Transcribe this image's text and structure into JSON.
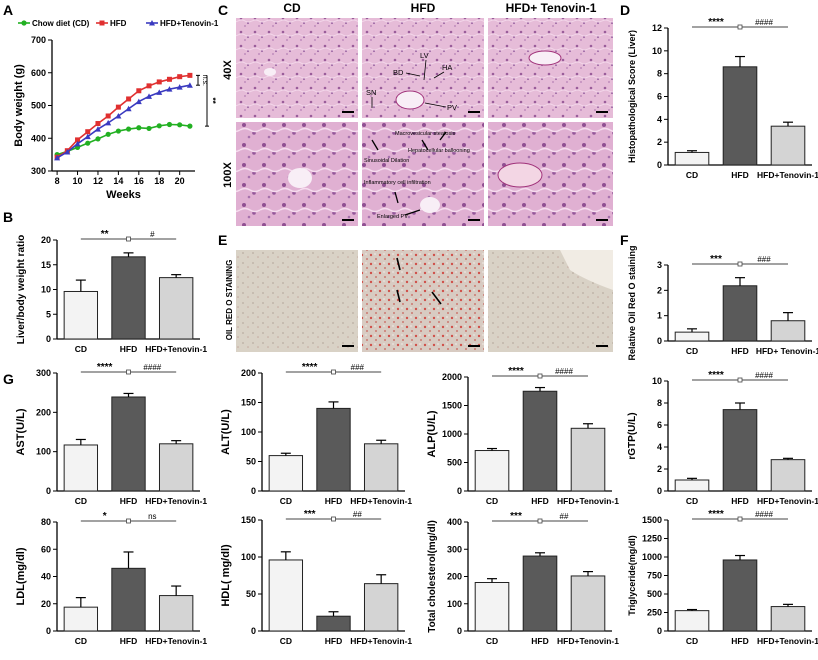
{
  "figure": {
    "panel_labels": [
      "A",
      "B",
      "C",
      "D",
      "E",
      "F",
      "G"
    ],
    "histology": {
      "columns": [
        "CD",
        "HFD",
        "HFD+ Tenovin-1"
      ],
      "rows": [
        "40X",
        "100X"
      ],
      "stain_label": "OIL RED O STAINING",
      "annotations_40x": [
        "LV",
        "BD",
        "HA",
        "SN",
        "PV"
      ],
      "annotations_100x": [
        "Macrovesicular steatosis",
        "Hepatocellular ballooning",
        "Sinusoidal Dilation",
        "Inflammatory cell infiltration",
        "Enlarged PV"
      ]
    },
    "colors": {
      "cd": "#f3f3f3",
      "hfd": "#5a5a5a",
      "ten": "#d4d4d4",
      "green": "#22b022",
      "red": "#e03030",
      "blue": "#3a3ac0"
    }
  },
  "chart_data": [
    {
      "id": "A",
      "type": "line",
      "xlabel": "Weeks",
      "ylabel": "Body weight (g)",
      "xticks": [
        8,
        10,
        12,
        14,
        16,
        18,
        20
      ],
      "ylim": [
        300,
        700
      ],
      "yticks": [
        300,
        400,
        500,
        600,
        700
      ],
      "legend": [
        "Chow diet (CD)",
        "HFD",
        "HFD+Tenovin-1"
      ],
      "x": [
        8,
        9,
        10,
        11,
        12,
        13,
        14,
        15,
        16,
        17,
        18,
        19,
        20,
        21
      ],
      "series": [
        {
          "name": "Chow diet (CD)",
          "values": [
            350,
            360,
            372,
            385,
            398,
            412,
            422,
            428,
            432,
            430,
            438,
            442,
            441,
            437
          ]
        },
        {
          "name": "HFD",
          "values": [
            342,
            362,
            395,
            420,
            445,
            468,
            495,
            520,
            545,
            560,
            572,
            580,
            588,
            592
          ]
        },
        {
          "name": "HFD+Tenovin-1",
          "values": [
            340,
            358,
            383,
            405,
            428,
            447,
            468,
            490,
            512,
            528,
            540,
            550,
            556,
            562
          ]
        }
      ],
      "sig": [
        "n.s.",
        "**"
      ]
    },
    {
      "id": "B",
      "type": "bar",
      "categories": [
        "CD",
        "HFD",
        "HFD+Tenovin-1"
      ],
      "values": [
        9.6,
        16.6,
        12.4
      ],
      "errors": [
        2.3,
        0.8,
        0.6
      ],
      "ylabel": "Liver/body weight ratio",
      "ylim": [
        0,
        20
      ],
      "yticks": [
        0,
        5,
        10,
        15,
        20
      ],
      "sig": [
        "**",
        "#"
      ]
    },
    {
      "id": "D",
      "type": "bar",
      "categories": [
        "CD",
        "HFD",
        "HFD+Tenovin-1"
      ],
      "values": [
        1.1,
        8.6,
        3.4
      ],
      "errors": [
        0.15,
        0.9,
        0.35
      ],
      "ylabel": "Histopathological Score (Liver)",
      "ylim": [
        0,
        12
      ],
      "yticks": [
        0,
        2,
        4,
        6,
        8,
        10,
        12
      ],
      "sig": [
        "****",
        "####"
      ]
    },
    {
      "id": "F",
      "type": "bar",
      "categories": [
        "CD",
        "HFD",
        "HFD+ Tenovin-1"
      ],
      "values": [
        0.35,
        2.18,
        0.8
      ],
      "errors": [
        0.13,
        0.32,
        0.32
      ],
      "ylabel": "Relative Oil Red O staining",
      "ylim": [
        0,
        3
      ],
      "yticks": [
        0,
        1,
        2,
        3
      ],
      "sig": [
        "***",
        "###"
      ]
    },
    {
      "id": "AST",
      "type": "bar",
      "categories": [
        "CD",
        "HFD",
        "HFD+Tenovin-1"
      ],
      "values": [
        117,
        239,
        120
      ],
      "errors": [
        14,
        9,
        8
      ],
      "ylabel": "AST(U/L)",
      "ylim": [
        0,
        300
      ],
      "yticks": [
        0,
        100,
        200,
        300
      ],
      "sig": [
        "****",
        "####"
      ]
    },
    {
      "id": "ALT",
      "type": "bar",
      "categories": [
        "CD",
        "HFD",
        "HFD+Tenovin-1"
      ],
      "values": [
        60,
        140,
        80
      ],
      "errors": [
        4,
        11,
        6
      ],
      "ylabel": "ALT(U/L)",
      "ylim": [
        0,
        200
      ],
      "yticks": [
        0,
        50,
        100,
        150,
        200
      ],
      "sig": [
        "****",
        "###"
      ]
    },
    {
      "id": "ALP",
      "type": "bar",
      "categories": [
        "CD",
        "HFD",
        "HFD+Tenovin-1"
      ],
      "values": [
        710,
        1750,
        1100
      ],
      "errors": [
        35,
        65,
        80
      ],
      "ylabel": "ALP(U/L)",
      "ylim": [
        0,
        2000
      ],
      "yticks": [
        0,
        500,
        1000,
        1500,
        2000
      ],
      "sig": [
        "****",
        "####"
      ]
    },
    {
      "id": "rGTP",
      "type": "bar",
      "categories": [
        "CD",
        "HFD",
        "HFD+Tenovin-1"
      ],
      "values": [
        1.0,
        7.4,
        2.85
      ],
      "errors": [
        0.15,
        0.6,
        0.12
      ],
      "ylabel": "rGTP(U/L)",
      "ylim": [
        0,
        10
      ],
      "yticks": [
        0,
        2,
        4,
        6,
        8,
        10
      ],
      "sig": [
        "****",
        "####"
      ]
    },
    {
      "id": "LDL",
      "type": "bar",
      "categories": [
        "CD",
        "HFD",
        "HFD+Tenovin-1"
      ],
      "values": [
        17.5,
        46,
        26
      ],
      "errors": [
        7,
        12,
        7
      ],
      "ylabel": "LDL(mg/dl)",
      "ylim": [
        0,
        80
      ],
      "yticks": [
        0,
        20,
        40,
        60,
        80
      ],
      "sig": [
        "*",
        "ns"
      ]
    },
    {
      "id": "HDL",
      "type": "bar",
      "categories": [
        "CD",
        "HFD",
        "HFD+Tenovin-1"
      ],
      "values": [
        96,
        20,
        64
      ],
      "errors": [
        11,
        6,
        12
      ],
      "ylabel": "HDL( mg/dl)",
      "ylim": [
        0,
        150
      ],
      "yticks": [
        0,
        50,
        100,
        150
      ],
      "sig": [
        "***",
        "##"
      ]
    },
    {
      "id": "TC",
      "type": "bar",
      "categories": [
        "CD",
        "HFD",
        "HFD+Tenovin-1"
      ],
      "values": [
        178,
        275,
        202
      ],
      "errors": [
        14,
        12,
        16
      ],
      "ylabel": "Total cholesterol(mg/dl)",
      "ylim": [
        0,
        400
      ],
      "yticks": [
        0,
        100,
        200,
        300,
        400
      ],
      "sig": [
        "***",
        "##"
      ]
    },
    {
      "id": "TG",
      "type": "bar",
      "categories": [
        "CD",
        "HFD",
        "HFD+Tenovin-1"
      ],
      "values": [
        275,
        960,
        330
      ],
      "errors": [
        15,
        60,
        30
      ],
      "ylabel": "Triglyceride(mg/dl)",
      "ylim": [
        0,
        1500
      ],
      "yticks": [
        0,
        250,
        500,
        750,
        1000,
        1250,
        1500
      ],
      "sig": [
        "****",
        "####"
      ]
    }
  ]
}
